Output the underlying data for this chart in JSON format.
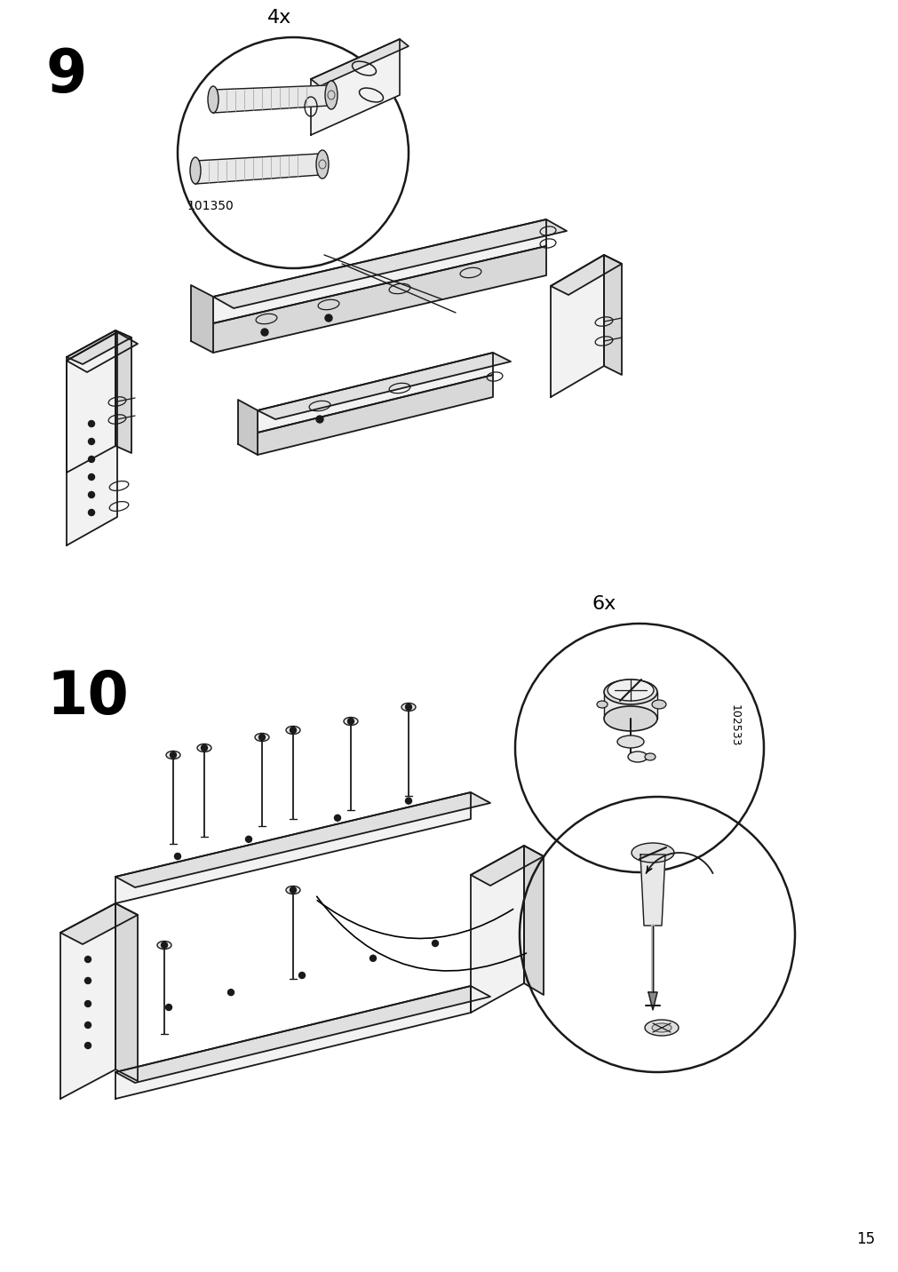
{
  "page_number": "15",
  "bg_color": "#ffffff",
  "line_color": "#1a1a1a",
  "step9_num": "9",
  "step10_num": "10",
  "qty9": "4x",
  "qty10": "6x",
  "part9": "101350",
  "part10": "102533",
  "face_color": "#f2f2f2",
  "top_color": "#e0e0e0",
  "side_color": "#d8d8d8",
  "dark_color": "#c8c8c8"
}
